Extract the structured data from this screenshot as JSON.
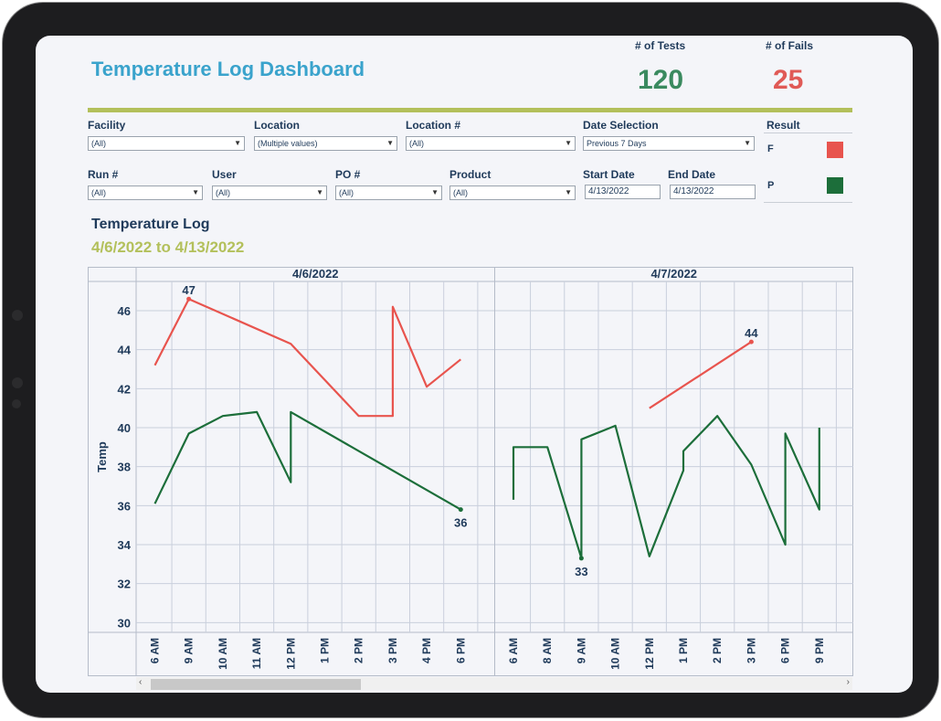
{
  "dashboard": {
    "title": "Temperature Log Dashboard",
    "kpis": [
      {
        "label": "# of Tests",
        "value": "120",
        "color": "#3a8a5f"
      },
      {
        "label": "# of Fails",
        "value": "25",
        "color": "#e05a56"
      }
    ]
  },
  "filters": {
    "facility": {
      "label": "Facility",
      "value": "(All)"
    },
    "location": {
      "label": "Location",
      "value": "(Multiple values)"
    },
    "location_num": {
      "label": "Location #",
      "value": "(All)"
    },
    "date_selection": {
      "label": "Date Selection",
      "value": "Previous 7 Days"
    },
    "run_num": {
      "label": "Run #",
      "value": "(All)"
    },
    "user": {
      "label": "User",
      "value": "(All)"
    },
    "po_num": {
      "label": "PO #",
      "value": "(All)"
    },
    "product": {
      "label": "Product",
      "value": "(All)"
    },
    "start_date": {
      "label": "Start Date",
      "value": "4/13/2022"
    },
    "end_date": {
      "label": "End Date",
      "value": "4/13/2022"
    }
  },
  "result_legend": {
    "title": "Result",
    "items": [
      {
        "label": "F",
        "color": "#e8544e"
      },
      {
        "label": "P",
        "color": "#1c6e3a"
      }
    ]
  },
  "section": {
    "title": "Temperature Log",
    "subtitle": "4/6/2022 to 4/13/2022"
  },
  "chart_data": {
    "type": "line",
    "ylabel": "Temp",
    "ylim": [
      29.5,
      47.5
    ],
    "yticks": [
      30,
      32,
      34,
      36,
      38,
      40,
      42,
      44,
      46
    ],
    "grid": true,
    "panes": [
      {
        "date": "4/6/2022",
        "ticks": [
          "6 AM",
          "9 AM",
          "10 AM",
          "11 AM",
          "12 PM",
          "1 PM",
          "2 PM",
          "3 PM",
          "4 PM",
          "6 PM"
        ]
      },
      {
        "date": "4/7/2022",
        "ticks": [
          "6 AM",
          "8 AM",
          "9 AM",
          "10 AM",
          "12 PM",
          "1 PM",
          "2 PM",
          "3 PM",
          "6 PM",
          "9 PM"
        ]
      }
    ],
    "series": [
      {
        "name": "F",
        "color": "#e8544e",
        "segments": [
          {
            "pane": 0,
            "points": [
              [
                0,
                43.2
              ],
              [
                1,
                46.6
              ],
              [
                4,
                44.3
              ],
              [
                6,
                40.6
              ],
              [
                7,
                40.6
              ],
              [
                7,
                46.2
              ],
              [
                8,
                42.1
              ],
              [
                9,
                43.5
              ]
            ]
          },
          {
            "pane": 1,
            "points": [
              [
                4,
                41.0
              ],
              [
                7,
                44.4
              ]
            ]
          }
        ]
      },
      {
        "name": "P",
        "color": "#1c6e3a",
        "segments": [
          {
            "pane": 0,
            "points": [
              [
                0,
                36.1
              ],
              [
                1,
                39.7
              ],
              [
                2,
                40.6
              ],
              [
                3,
                40.8
              ],
              [
                4,
                37.2
              ],
              [
                4,
                40.8
              ],
              [
                9,
                35.8
              ]
            ]
          },
          {
            "pane": 1,
            "points": [
              [
                0,
                36.3
              ],
              [
                0,
                39.0
              ],
              [
                1,
                39.0
              ],
              [
                2,
                33.3
              ],
              [
                2,
                39.4
              ],
              [
                3,
                40.1
              ],
              [
                4,
                33.4
              ],
              [
                5,
                37.8
              ],
              [
                5,
                38.8
              ],
              [
                6,
                40.6
              ],
              [
                7,
                38.1
              ],
              [
                8,
                34.0
              ],
              [
                8,
                39.7
              ],
              [
                9,
                35.8
              ],
              [
                9,
                40.0
              ]
            ]
          }
        ]
      }
    ],
    "annotations": [
      {
        "label": "47",
        "pane": 0,
        "x": 1,
        "y": 46.6,
        "series": "F"
      },
      {
        "label": "36",
        "pane": 0,
        "x": 9,
        "y": 35.8,
        "series": "P"
      },
      {
        "label": "33",
        "pane": 1,
        "x": 2,
        "y": 33.3,
        "series": "P"
      },
      {
        "label": "44",
        "pane": 1,
        "x": 7,
        "y": 44.4,
        "series": "F"
      }
    ]
  }
}
